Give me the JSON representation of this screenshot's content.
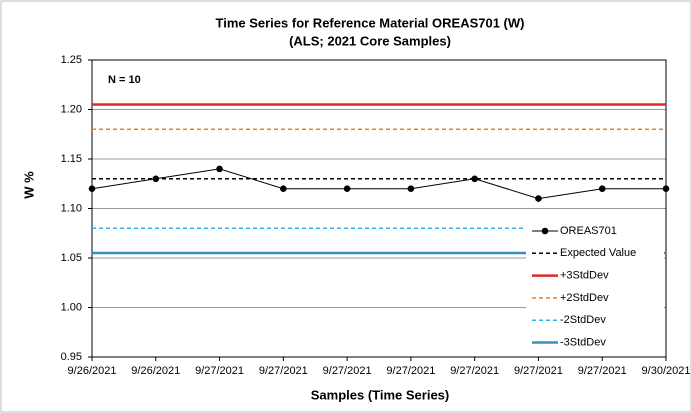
{
  "chart_data": {
    "type": "line",
    "title": "Time Series for Reference Material OREAS701 (W)",
    "subtitle": "(ALS; 2021 Core Samples)",
    "annotation": "N = 10",
    "x_label": "Samples (Time Series)",
    "y_label": "W %",
    "categories": [
      "9/26/2021",
      "9/26/2021",
      "9/27/2021",
      "9/27/2021",
      "9/27/2021",
      "9/27/2021",
      "9/27/2021",
      "9/27/2021",
      "9/27/2021",
      "9/30/2021"
    ],
    "series": [
      {
        "name": "OREAS701",
        "color": "#000000",
        "line_style": "solid",
        "marker": "circle",
        "values": [
          1.12,
          1.13,
          1.14,
          1.12,
          1.12,
          1.12,
          1.13,
          1.11,
          1.12,
          1.12
        ]
      },
      {
        "name": "Expected Value",
        "color": "#000000",
        "line_style": "dashed",
        "values": [
          1.13,
          1.13,
          1.13,
          1.13,
          1.13,
          1.13,
          1.13,
          1.13,
          1.13,
          1.13
        ]
      },
      {
        "name": "+3StdDev",
        "color": "#e8262a",
        "line_style": "solid",
        "values": [
          1.205,
          1.205,
          1.205,
          1.205,
          1.205,
          1.205,
          1.205,
          1.205,
          1.205,
          1.205
        ]
      },
      {
        "name": "+2StdDev",
        "color": "#f07f1e",
        "line_style": "dashed",
        "values": [
          1.18,
          1.18,
          1.18,
          1.18,
          1.18,
          1.18,
          1.18,
          1.18,
          1.18,
          1.18
        ]
      },
      {
        "name": "-2StdDev",
        "color": "#2bb3e6",
        "line_style": "dashed",
        "values": [
          1.08,
          1.08,
          1.08,
          1.08,
          1.08,
          1.08,
          1.08,
          1.08,
          1.08,
          1.08
        ]
      },
      {
        "name": "-3StdDev",
        "color": "#3a8fc0",
        "line_style": "solid",
        "values": [
          1.055,
          1.055,
          1.055,
          1.055,
          1.055,
          1.055,
          1.055,
          1.055,
          1.055,
          1.055
        ]
      }
    ],
    "ylim": [
      0.95,
      1.25
    ],
    "yticks": [
      0.95,
      {
        "value": 1.0,
        "label": "1.00"
      },
      1.05,
      {
        "value": 1.1,
        "label": "1.10"
      },
      1.15,
      {
        "value": 1.2,
        "label": "1.20"
      },
      1.25
    ],
    "grid": true,
    "legend": "lower right"
  }
}
